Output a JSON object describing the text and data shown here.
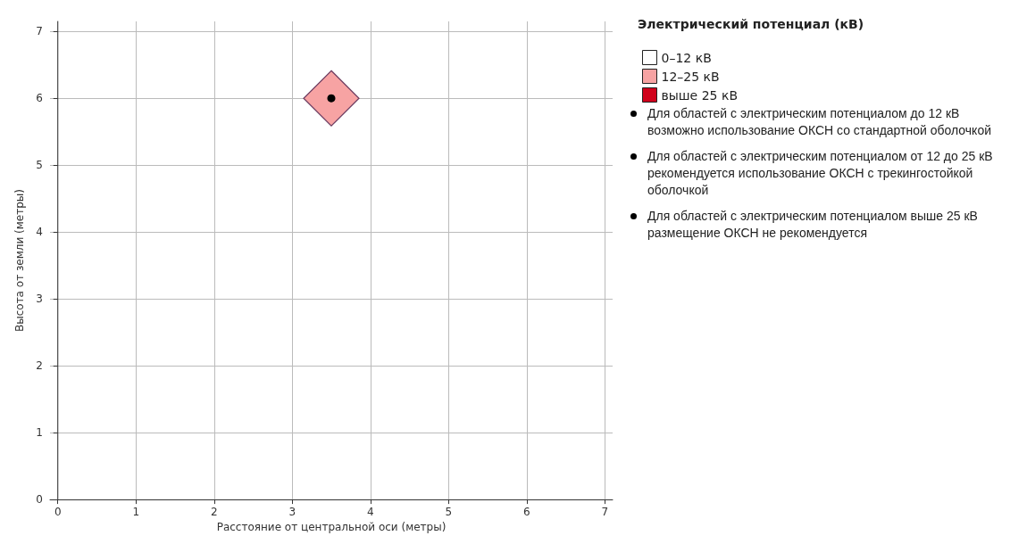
{
  "chart_data": {
    "type": "scatter",
    "xlabel": "Расстояние от центральной оси (метры)",
    "ylabel": "Высота от земли (метры)",
    "legend_title": "Электрический потенциал (кВ)",
    "x": [
      3.5
    ],
    "series": [
      {
        "name": "0–12 кВ",
        "color": "#ffffff",
        "values": [
          null
        ]
      },
      {
        "name": "12–25 кВ",
        "color": "#f7a3a3",
        "values": [
          6
        ]
      },
      {
        "name": "выше 25 кВ",
        "color": "#d0021b",
        "values": [
          null
        ]
      }
    ],
    "marker": "diamond",
    "xlim": [
      -0.1,
      7.1
    ],
    "xticks": [
      0,
      1,
      2,
      3,
      4,
      5,
      6,
      7
    ],
    "ylim": [
      0,
      7.15
    ],
    "yticks": [
      0,
      1,
      2,
      3,
      4,
      5,
      6,
      7
    ],
    "grid": true,
    "legend": "right",
    "annotations": [
      "Для областей с электрическим потенциалом до 12 кВ возможно использование ОКСН со стандартной оболочкой",
      "Для областей с электрическим потенциалом от 12 до 25 кВ рекомендуется использование ОКСН с трекингостойкой оболочкой",
      "Для областей с электрическим потенциалом выше 25 кВ размещение ОКСН не рекомендуется"
    ]
  }
}
